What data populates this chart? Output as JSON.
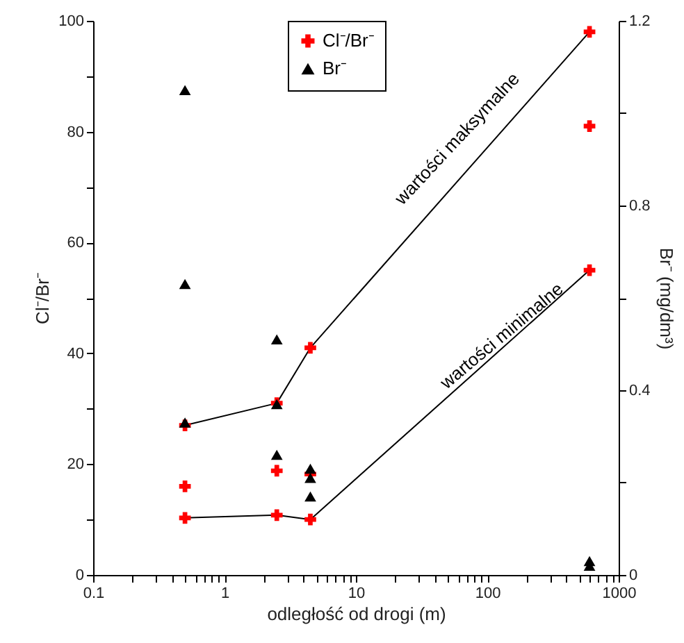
{
  "chart_data": {
    "type": "scatter",
    "xlabel": "odległość od drogi (m)",
    "ylabel": "Cl⁻/Br⁻",
    "y2label": "Br⁻ (mg/dm³)",
    "log": "x",
    "grid": false,
    "legend": "top",
    "xlim": [
      0.1,
      1000
    ],
    "xticks": [
      0.1,
      {
        "value": 0.2,
        "label": null
      },
      {
        "value": 0.3,
        "label": null
      },
      {
        "value": 0.4,
        "label": null
      },
      {
        "value": 0.5,
        "label": null
      },
      {
        "value": 0.6,
        "label": null
      },
      {
        "value": 0.7,
        "label": null
      },
      {
        "value": 0.8,
        "label": null
      },
      {
        "value": 0.9,
        "label": null
      },
      1,
      {
        "value": 2,
        "label": null
      },
      {
        "value": 3,
        "label": null
      },
      {
        "value": 4,
        "label": null
      },
      {
        "value": 5,
        "label": null
      },
      {
        "value": 6,
        "label": null
      },
      {
        "value": 7,
        "label": null
      },
      {
        "value": 8,
        "label": null
      },
      {
        "value": 9,
        "label": null
      },
      10,
      {
        "value": 20,
        "label": null
      },
      {
        "value": 30,
        "label": null
      },
      {
        "value": 40,
        "label": null
      },
      {
        "value": 50,
        "label": null
      },
      {
        "value": 60,
        "label": null
      },
      {
        "value": 70,
        "label": null
      },
      {
        "value": 80,
        "label": null
      },
      {
        "value": 90,
        "label": null
      },
      100,
      {
        "value": 200,
        "label": null
      },
      {
        "value": 300,
        "label": null
      },
      {
        "value": 400,
        "label": null
      },
      {
        "value": 500,
        "label": null
      },
      {
        "value": 600,
        "label": null
      },
      {
        "value": 700,
        "label": null
      },
      {
        "value": 800,
        "label": null
      },
      {
        "value": 900,
        "label": null
      },
      1000
    ],
    "ylim": [
      0,
      100
    ],
    "yticks": [
      0,
      {
        "value": 10,
        "label": null
      },
      20,
      {
        "value": 30,
        "label": null
      },
      40,
      {
        "value": 50,
        "label": null
      },
      60,
      {
        "value": 70,
        "label": null
      },
      80,
      {
        "value": 90,
        "label": null
      },
      100
    ],
    "y2lim": [
      0,
      1.2
    ],
    "y2ticks": [
      0,
      {
        "value": 0.2,
        "label": null
      },
      0.4,
      {
        "value": 0.6,
        "label": null
      },
      0.8,
      {
        "value": 1.0,
        "label": null
      },
      1.2
    ],
    "series": [
      {
        "type": "line",
        "color": "#000000",
        "marker": "none",
        "line_style": "solid",
        "x": [
          0.5,
          2.5,
          4.5,
          600
        ],
        "values": [
          27,
          31,
          41,
          98
        ]
      },
      {
        "type": "line",
        "color": "#000000",
        "marker": "none",
        "line_style": "solid",
        "x": [
          0.5,
          2.5,
          4.5,
          600
        ],
        "values": [
          10.3,
          10.8,
          10,
          55
        ]
      },
      {
        "type": "scatter",
        "name": "Cl⁻/Br⁻",
        "color": "#ff0000",
        "marker": "cross",
        "x": [
          0.5,
          0.5,
          0.5,
          2.5,
          2.5,
          2.5,
          4.5,
          4.5,
          4.5,
          600,
          600,
          600
        ],
        "values": [
          27,
          16,
          10.3,
          31,
          18.8,
          10.8,
          41,
          18.2,
          10,
          98,
          81,
          55
        ]
      },
      {
        "type": "scatter",
        "name": "Br⁻",
        "color": "#000000",
        "marker": "triangle",
        "axis": "y2",
        "x": [
          0.5,
          0.5,
          0.5,
          2.5,
          2.5,
          2.5,
          4.5,
          4.5,
          4.5,
          600,
          600
        ],
        "values": [
          1.05,
          0.63,
          0.33,
          0.51,
          0.37,
          0.26,
          0.23,
          0.21,
          0.17,
          0.03,
          0.02
        ]
      }
    ],
    "annotations": [
      "wartości maksymalne",
      "wartości minimalne"
    ]
  }
}
